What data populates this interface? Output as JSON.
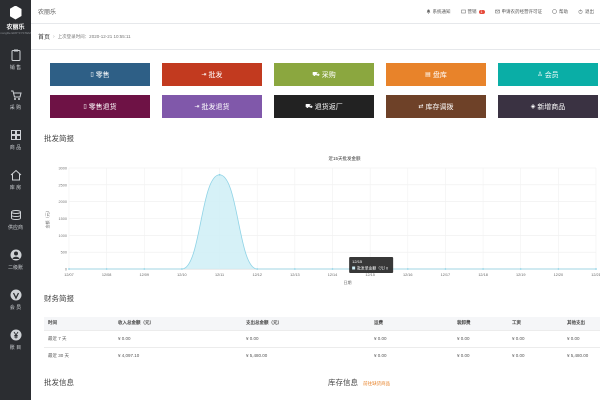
{
  "app": {
    "logo_text": "农丽乐",
    "logo_sub": "nonglile ERP SYSTEM",
    "brand": "农丽乐"
  },
  "sidebar": {
    "items": [
      {
        "label": "销 售",
        "icon": "clipboard-icon"
      },
      {
        "label": "采 购",
        "icon": "cart-icon"
      },
      {
        "label": "商 品",
        "icon": "grid-icon"
      },
      {
        "label": "库 房",
        "icon": "house-icon"
      },
      {
        "label": "供应商",
        "icon": "database-icon"
      },
      {
        "label": "二级账",
        "icon": "person-icon"
      },
      {
        "label": "会 员",
        "icon": "vip-icon"
      },
      {
        "label": "账 目",
        "icon": "yuan-icon"
      }
    ]
  },
  "topbar": {
    "notice": "系统通知",
    "message": "营销",
    "message_badge": "1",
    "license": "申请农药经营许可证",
    "help": "帮助",
    "user": "退出"
  },
  "breadcrumb": {
    "home": "首页",
    "last_login": "上次登录时间：2020-12-21 10:55:11"
  },
  "quick_buttons": [
    {
      "label": "零售",
      "glyph": "▯",
      "color": "#2e5f86"
    },
    {
      "label": "批发",
      "glyph": "⇥",
      "color": "#c23a1f"
    },
    {
      "label": "采购",
      "glyph": "⛟",
      "color": "#8ba73f"
    },
    {
      "label": "盘库",
      "glyph": "▤",
      "color": "#e8832a"
    },
    {
      "label": "会员",
      "glyph": "♙",
      "color": "#0aaea6"
    },
    {
      "label": "零售退货",
      "glyph": "▯",
      "color": "#6e1245"
    },
    {
      "label": "批发退货",
      "glyph": "⇥",
      "color": "#8058aa"
    },
    {
      "label": "退货返厂",
      "glyph": "⛟",
      "color": "#222222"
    },
    {
      "label": "库存调拨",
      "glyph": "⇄",
      "color": "#6e4128"
    },
    {
      "label": "新增商品",
      "glyph": "◈",
      "color": "#3a3242"
    }
  ],
  "sections": {
    "wholesale_brief": "批发简报",
    "finance_brief": "财务简报",
    "wholesale_info": "批发信息",
    "stock_info": "库存信息",
    "stock_link": "前往缺货商品"
  },
  "chart_data": {
    "type": "area",
    "title": "近15天批发金额",
    "ylabel": "金额（元）",
    "xlabel": "日期",
    "categories": [
      "12/07",
      "12/08",
      "12/09",
      "12/10",
      "12/11",
      "12/12",
      "12/13",
      "12/14",
      "12/15",
      "12/16",
      "12/17",
      "12/18",
      "12/19",
      "12/20",
      "12/21"
    ],
    "yticks": [
      0,
      500,
      1000,
      1500,
      2000,
      2500,
      3000
    ],
    "ylim": [
      0,
      3000
    ],
    "series": [
      {
        "name": "批发单金额（元）",
        "values": [
          0,
          0,
          0,
          0,
          2800,
          0,
          0,
          0,
          0,
          0,
          0,
          0,
          0,
          0,
          0
        ]
      }
    ],
    "tooltip": {
      "date": "12/15",
      "label": "批发单金额（元）",
      "value": "0"
    },
    "fill": "#cfeef6",
    "stroke": "#8fd3e6"
  },
  "finance": {
    "headers": [
      "时间",
      "收入总金额（元）",
      "支出总金额（元）",
      "运费",
      "装卸费",
      "工资",
      "其他支出"
    ],
    "rows": [
      [
        "最近 7 天",
        "¥ 0.00",
        "¥ 0.00",
        "¥ 0.00",
        "¥ 0.00",
        "¥ 0.00",
        "¥ 0.00"
      ],
      [
        "最近 30 天",
        "¥ 4,097.10",
        "¥ 5,480.00",
        "¥ 0.00",
        "¥ 0.00",
        "¥ 0.00",
        "¥ 5,480.00"
      ]
    ]
  }
}
